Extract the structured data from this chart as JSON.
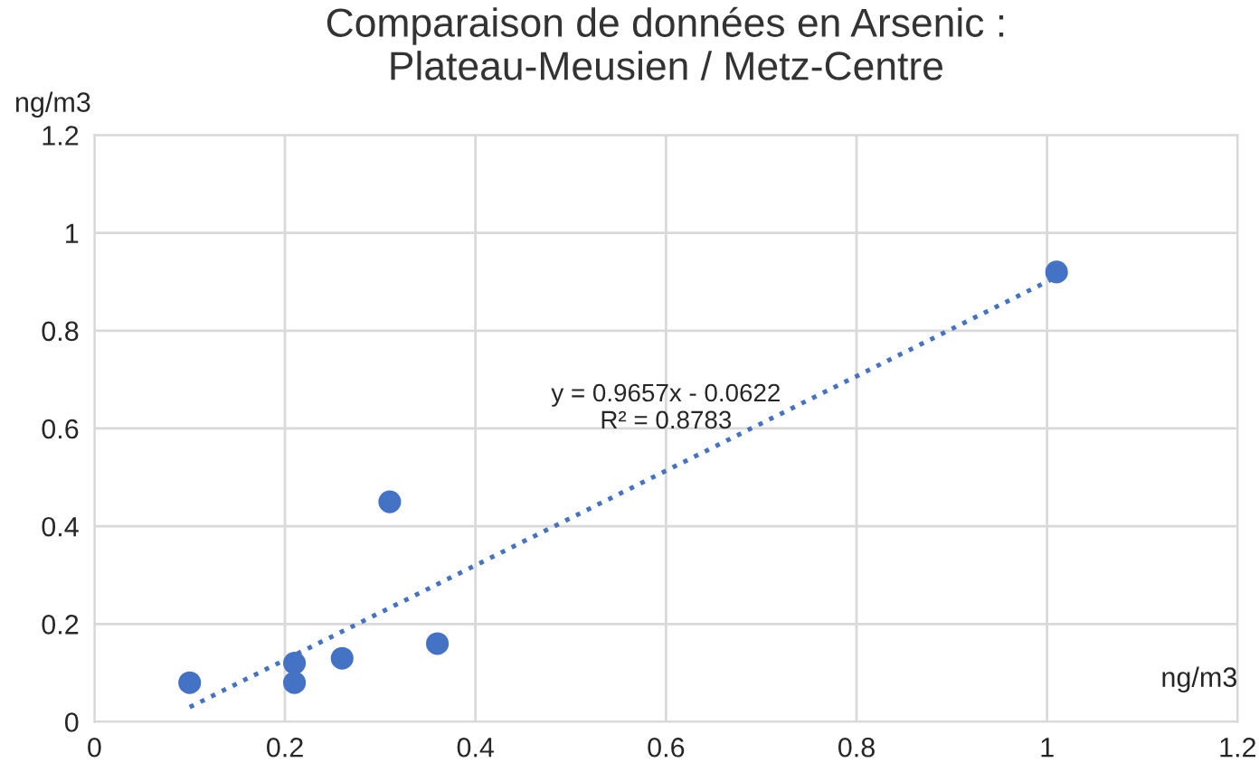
{
  "chart_data": {
    "type": "scatter",
    "title": "Comparaison de données en Arsenic :\nPlateau-Meusien / Metz-Centre",
    "xlabel": "ng/m3",
    "ylabel": "ng/m3",
    "xlim": [
      0,
      1.2
    ],
    "ylim": [
      0,
      1.2
    ],
    "xticks": [
      0,
      0.2,
      0.4,
      0.6,
      0.8,
      1,
      1.2
    ],
    "yticks": [
      0,
      0.2,
      0.4,
      0.6,
      0.8,
      1,
      1.2
    ],
    "grid": true,
    "marker": "circle",
    "series": [
      {
        "type": "scatter",
        "color": "#4472c4",
        "x": [
          0.1,
          0.21,
          0.21,
          0.26,
          0.31,
          0.36,
          1.01
        ],
        "values": [
          0.08,
          0.12,
          0.08,
          0.13,
          0.45,
          0.16,
          0.92
        ]
      },
      {
        "type": "line",
        "color": "#4472c4",
        "line_style": "dotted",
        "marker": "none",
        "x": [
          0.1,
          1.01
        ],
        "values": [
          0.03,
          0.91
        ]
      }
    ],
    "annotations": [
      "y = 0.9657x - 0.0622\nR² = 0.8783"
    ]
  }
}
